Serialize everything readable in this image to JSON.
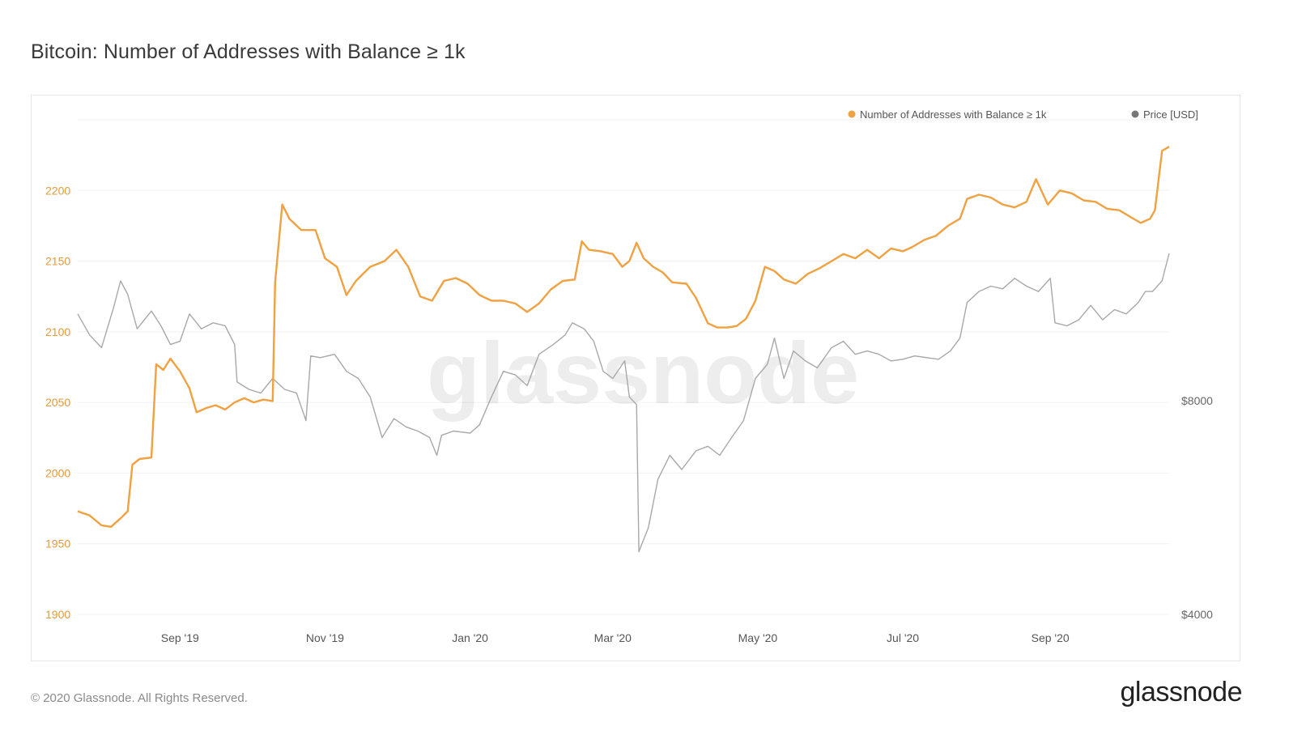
{
  "title": "Bitcoin: Number of Addresses with Balance ≥ 1k",
  "footer": "© 2020 Glassnode. All Rights Reserved.",
  "brand": "glassnode",
  "watermark": "glassnode",
  "colors": {
    "addresses": "#f0a141",
    "price": "#a8a8a8",
    "grid": "#f0f0f0"
  },
  "chart_data": {
    "type": "line",
    "title": "Bitcoin: Number of Addresses with Balance ≥ 1k",
    "legend_position": "top-right",
    "grid": true,
    "x_range": [
      "2019-07-20",
      "2020-10-21"
    ],
    "x_ticks": [
      {
        "label": "Sep '19",
        "date": "2019-09-01"
      },
      {
        "label": "Nov '19",
        "date": "2019-11-01"
      },
      {
        "label": "Jan '20",
        "date": "2020-01-01"
      },
      {
        "label": "Mar '20",
        "date": "2020-03-01"
      },
      {
        "label": "May '20",
        "date": "2020-05-01"
      },
      {
        "label": "Jul '20",
        "date": "2020-07-01"
      },
      {
        "label": "Sep '20",
        "date": "2020-09-01"
      }
    ],
    "y_left": {
      "ticks": [
        1900,
        1950,
        2000,
        2050,
        2100,
        2150,
        2200
      ],
      "range": [
        1900,
        2250
      ]
    },
    "y_right": {
      "scale": "log",
      "ticks": [
        {
          "label": "$4000",
          "value": 4000
        },
        {
          "label": "$8000",
          "value": 8000
        }
      ]
    },
    "series": [
      {
        "name": "Number of Addresses with Balance ≥ 1k",
        "axis": "left",
        "points": [
          [
            "2019-07-20",
            1973
          ],
          [
            "2019-07-25",
            1970
          ],
          [
            "2019-07-30",
            1963
          ],
          [
            "2019-08-03",
            1962
          ],
          [
            "2019-08-07",
            1968
          ],
          [
            "2019-08-10",
            1973
          ],
          [
            "2019-08-12",
            2006
          ],
          [
            "2019-08-15",
            2010
          ],
          [
            "2019-08-20",
            2011
          ],
          [
            "2019-08-22",
            2077
          ],
          [
            "2019-08-25",
            2073
          ],
          [
            "2019-08-28",
            2081
          ],
          [
            "2019-09-01",
            2072
          ],
          [
            "2019-09-05",
            2060
          ],
          [
            "2019-09-08",
            2043
          ],
          [
            "2019-09-12",
            2046
          ],
          [
            "2019-09-16",
            2048
          ],
          [
            "2019-09-20",
            2045
          ],
          [
            "2019-09-24",
            2050
          ],
          [
            "2019-09-28",
            2053
          ],
          [
            "2019-10-02",
            2050
          ],
          [
            "2019-10-06",
            2052
          ],
          [
            "2019-10-10",
            2051
          ],
          [
            "2019-10-11",
            2135
          ],
          [
            "2019-10-14",
            2190
          ],
          [
            "2019-10-17",
            2180
          ],
          [
            "2019-10-22",
            2172
          ],
          [
            "2019-10-28",
            2172
          ],
          [
            "2019-11-01",
            2152
          ],
          [
            "2019-11-06",
            2146
          ],
          [
            "2019-11-10",
            2126
          ],
          [
            "2019-11-14",
            2136
          ],
          [
            "2019-11-20",
            2146
          ],
          [
            "2019-11-26",
            2150
          ],
          [
            "2019-12-01",
            2158
          ],
          [
            "2019-12-06",
            2146
          ],
          [
            "2019-12-11",
            2125
          ],
          [
            "2019-12-16",
            2122
          ],
          [
            "2019-12-21",
            2136
          ],
          [
            "2019-12-26",
            2138
          ],
          [
            "2019-12-31",
            2134
          ],
          [
            "2020-01-05",
            2126
          ],
          [
            "2020-01-10",
            2122
          ],
          [
            "2020-01-15",
            2122
          ],
          [
            "2020-01-20",
            2120
          ],
          [
            "2020-01-25",
            2114
          ],
          [
            "2020-01-30",
            2120
          ],
          [
            "2020-02-04",
            2130
          ],
          [
            "2020-02-09",
            2136
          ],
          [
            "2020-02-14",
            2137
          ],
          [
            "2020-02-17",
            2164
          ],
          [
            "2020-02-20",
            2158
          ],
          [
            "2020-02-25",
            2157
          ],
          [
            "2020-03-01",
            2155
          ],
          [
            "2020-03-05",
            2146
          ],
          [
            "2020-03-08",
            2150
          ],
          [
            "2020-03-11",
            2163
          ],
          [
            "2020-03-14",
            2152
          ],
          [
            "2020-03-18",
            2146
          ],
          [
            "2020-03-22",
            2142
          ],
          [
            "2020-03-26",
            2135
          ],
          [
            "2020-04-01",
            2134
          ],
          [
            "2020-04-05",
            2124
          ],
          [
            "2020-04-10",
            2106
          ],
          [
            "2020-04-14",
            2103
          ],
          [
            "2020-04-18",
            2103
          ],
          [
            "2020-04-22",
            2104
          ],
          [
            "2020-04-26",
            2109
          ],
          [
            "2020-04-30",
            2122
          ],
          [
            "2020-05-04",
            2146
          ],
          [
            "2020-05-08",
            2143
          ],
          [
            "2020-05-12",
            2137
          ],
          [
            "2020-05-17",
            2134
          ],
          [
            "2020-05-22",
            2141
          ],
          [
            "2020-05-27",
            2145
          ],
          [
            "2020-06-01",
            2150
          ],
          [
            "2020-06-06",
            2155
          ],
          [
            "2020-06-11",
            2152
          ],
          [
            "2020-06-16",
            2158
          ],
          [
            "2020-06-21",
            2152
          ],
          [
            "2020-06-26",
            2159
          ],
          [
            "2020-07-01",
            2157
          ],
          [
            "2020-07-05",
            2160
          ],
          [
            "2020-07-10",
            2165
          ],
          [
            "2020-07-15",
            2168
          ],
          [
            "2020-07-20",
            2175
          ],
          [
            "2020-07-25",
            2180
          ],
          [
            "2020-07-28",
            2194
          ],
          [
            "2020-08-02",
            2197
          ],
          [
            "2020-08-07",
            2195
          ],
          [
            "2020-08-12",
            2190
          ],
          [
            "2020-08-17",
            2188
          ],
          [
            "2020-08-22",
            2192
          ],
          [
            "2020-08-26",
            2208
          ],
          [
            "2020-08-31",
            2190
          ],
          [
            "2020-09-05",
            2200
          ],
          [
            "2020-09-10",
            2198
          ],
          [
            "2020-09-15",
            2193
          ],
          [
            "2020-09-20",
            2192
          ],
          [
            "2020-09-25",
            2187
          ],
          [
            "2020-09-30",
            2186
          ],
          [
            "2020-10-05",
            2181
          ],
          [
            "2020-10-09",
            2177
          ],
          [
            "2020-10-13",
            2180
          ],
          [
            "2020-10-15",
            2186
          ],
          [
            "2020-10-18",
            2228
          ],
          [
            "2020-10-21",
            2231
          ]
        ]
      },
      {
        "name": "Price [USD]",
        "axis": "right",
        "points": [
          [
            "2019-07-20",
            10600
          ],
          [
            "2019-07-25",
            9900
          ],
          [
            "2019-07-30",
            9500
          ],
          [
            "2019-08-04",
            10800
          ],
          [
            "2019-08-07",
            11800
          ],
          [
            "2019-08-10",
            11300
          ],
          [
            "2019-08-14",
            10100
          ],
          [
            "2019-08-20",
            10700
          ],
          [
            "2019-08-24",
            10200
          ],
          [
            "2019-08-28",
            9600
          ],
          [
            "2019-09-01",
            9700
          ],
          [
            "2019-09-05",
            10600
          ],
          [
            "2019-09-10",
            10100
          ],
          [
            "2019-09-15",
            10300
          ],
          [
            "2019-09-20",
            10200
          ],
          [
            "2019-09-24",
            9600
          ],
          [
            "2019-09-25",
            8500
          ],
          [
            "2019-09-30",
            8300
          ],
          [
            "2019-10-05",
            8200
          ],
          [
            "2019-10-10",
            8600
          ],
          [
            "2019-10-15",
            8300
          ],
          [
            "2019-10-20",
            8200
          ],
          [
            "2019-10-24",
            7500
          ],
          [
            "2019-10-26",
            9250
          ],
          [
            "2019-10-30",
            9200
          ],
          [
            "2019-11-05",
            9300
          ],
          [
            "2019-11-10",
            8800
          ],
          [
            "2019-11-15",
            8600
          ],
          [
            "2019-11-20",
            8100
          ],
          [
            "2019-11-25",
            7100
          ],
          [
            "2019-11-30",
            7550
          ],
          [
            "2019-12-05",
            7350
          ],
          [
            "2019-12-10",
            7250
          ],
          [
            "2019-12-15",
            7100
          ],
          [
            "2019-12-18",
            6700
          ],
          [
            "2019-12-20",
            7150
          ],
          [
            "2019-12-25",
            7250
          ],
          [
            "2020-01-01",
            7200
          ],
          [
            "2020-01-05",
            7400
          ],
          [
            "2020-01-10",
            8100
          ],
          [
            "2020-01-15",
            8800
          ],
          [
            "2020-01-20",
            8700
          ],
          [
            "2020-01-25",
            8400
          ],
          [
            "2020-01-30",
            9300
          ],
          [
            "2020-02-05",
            9600
          ],
          [
            "2020-02-10",
            9900
          ],
          [
            "2020-02-13",
            10300
          ],
          [
            "2020-02-18",
            10100
          ],
          [
            "2020-02-22",
            9700
          ],
          [
            "2020-02-26",
            8800
          ],
          [
            "2020-03-01",
            8600
          ],
          [
            "2020-03-06",
            9100
          ],
          [
            "2020-03-08",
            8100
          ],
          [
            "2020-03-11",
            7900
          ],
          [
            "2020-03-12",
            4900
          ],
          [
            "2020-03-13",
            5000
          ],
          [
            "2020-03-16",
            5300
          ],
          [
            "2020-03-20",
            6200
          ],
          [
            "2020-03-25",
            6700
          ],
          [
            "2020-03-30",
            6400
          ],
          [
            "2020-04-05",
            6800
          ],
          [
            "2020-04-10",
            6900
          ],
          [
            "2020-04-15",
            6700
          ],
          [
            "2020-04-20",
            7100
          ],
          [
            "2020-04-25",
            7500
          ],
          [
            "2020-04-30",
            8600
          ],
          [
            "2020-05-05",
            9000
          ],
          [
            "2020-05-08",
            9800
          ],
          [
            "2020-05-12",
            8600
          ],
          [
            "2020-05-16",
            9400
          ],
          [
            "2020-05-21",
            9100
          ],
          [
            "2020-05-26",
            8900
          ],
          [
            "2020-06-01",
            9500
          ],
          [
            "2020-06-06",
            9700
          ],
          [
            "2020-06-11",
            9300
          ],
          [
            "2020-06-16",
            9400
          ],
          [
            "2020-06-21",
            9300
          ],
          [
            "2020-06-26",
            9100
          ],
          [
            "2020-07-01",
            9150
          ],
          [
            "2020-07-06",
            9250
          ],
          [
            "2020-07-11",
            9200
          ],
          [
            "2020-07-16",
            9150
          ],
          [
            "2020-07-21",
            9400
          ],
          [
            "2020-07-25",
            9800
          ],
          [
            "2020-07-28",
            11000
          ],
          [
            "2020-08-02",
            11400
          ],
          [
            "2020-08-07",
            11600
          ],
          [
            "2020-08-12",
            11500
          ],
          [
            "2020-08-17",
            11900
          ],
          [
            "2020-08-22",
            11600
          ],
          [
            "2020-08-27",
            11400
          ],
          [
            "2020-09-01",
            11900
          ],
          [
            "2020-09-03",
            10300
          ],
          [
            "2020-09-08",
            10200
          ],
          [
            "2020-09-13",
            10400
          ],
          [
            "2020-09-18",
            10900
          ],
          [
            "2020-09-23",
            10400
          ],
          [
            "2020-09-28",
            10750
          ],
          [
            "2020-10-03",
            10600
          ],
          [
            "2020-10-08",
            11000
          ],
          [
            "2020-10-11",
            11400
          ],
          [
            "2020-10-14",
            11400
          ],
          [
            "2020-10-18",
            11800
          ],
          [
            "2020-10-21",
            12900
          ]
        ]
      }
    ]
  }
}
